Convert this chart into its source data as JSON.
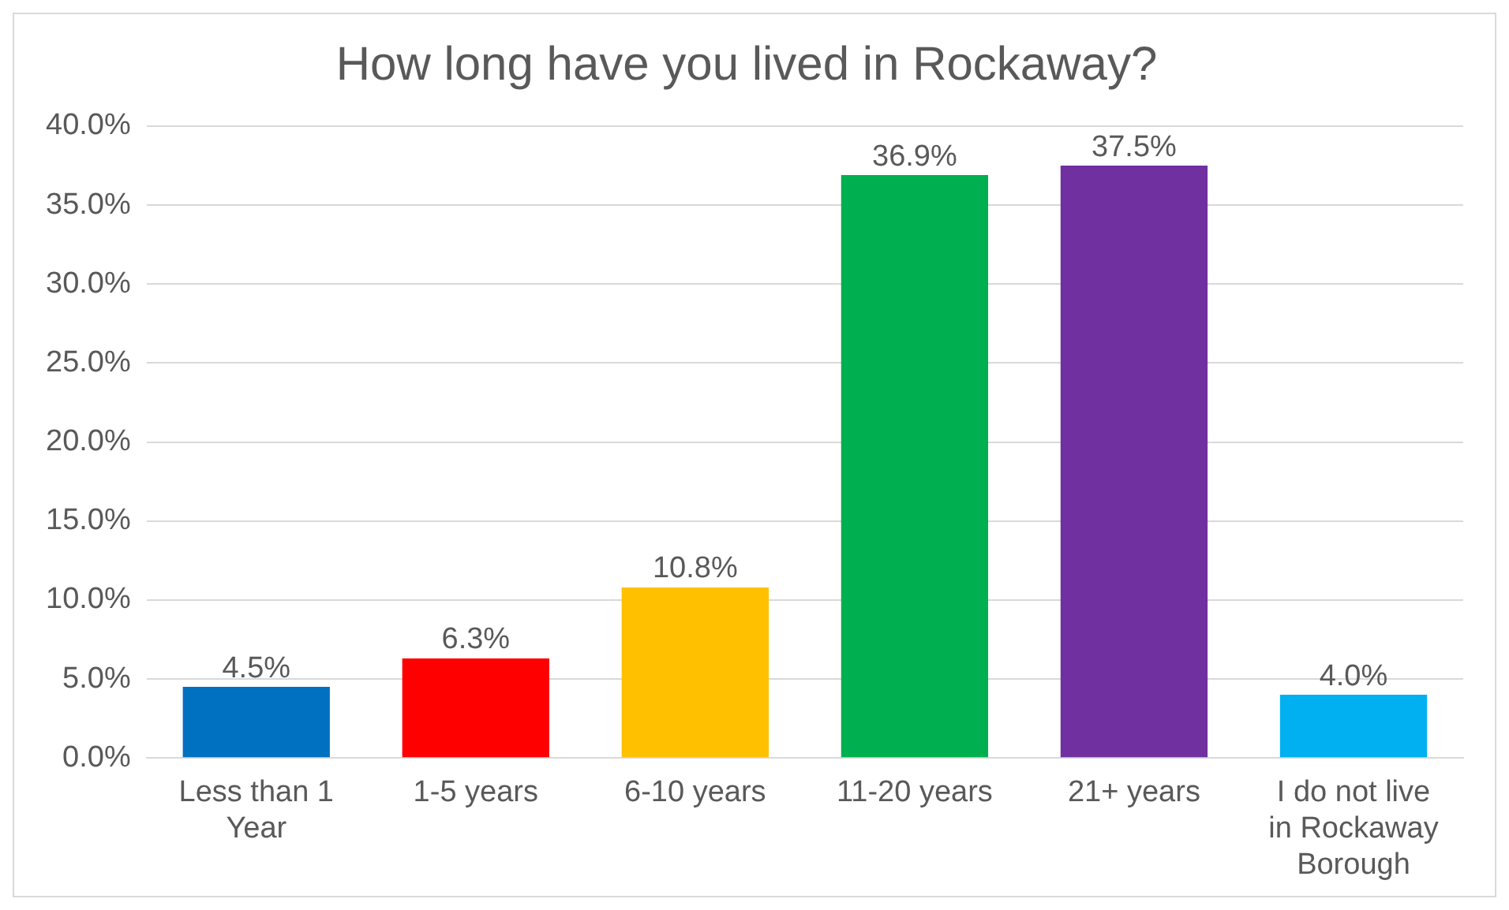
{
  "chart_data": {
    "type": "bar",
    "title": "How long have you lived in Rockaway?",
    "categories": [
      "Less than 1 Year",
      "1-5 years",
      "6-10 years",
      "11-20 years",
      "21+ years",
      "I do not live in Rockaway Borough"
    ],
    "values": [
      4.5,
      6.3,
      10.8,
      36.9,
      37.5,
      4.0
    ],
    "value_labels": [
      "4.5%",
      "6.3%",
      "10.8%",
      "36.9%",
      "37.5%",
      "4.0%"
    ],
    "colors": [
      "#0070c0",
      "#ff0000",
      "#ffc000",
      "#00b050",
      "#7030a0",
      "#00b0f0"
    ],
    "ylim": [
      0,
      40
    ],
    "yticks": [
      {
        "value": 0,
        "label": "0.0%"
      },
      {
        "value": 5,
        "label": "5.0%"
      },
      {
        "value": 10,
        "label": "10.0%"
      },
      {
        "value": 15,
        "label": "15.0%"
      },
      {
        "value": 20,
        "label": "20.0%"
      },
      {
        "value": 25,
        "label": "25.0%"
      },
      {
        "value": 30,
        "label": "30.0%"
      },
      {
        "value": 35,
        "label": "35.0%"
      },
      {
        "value": 40,
        "label": "40.0%"
      }
    ],
    "grid": "y",
    "legend": false
  }
}
